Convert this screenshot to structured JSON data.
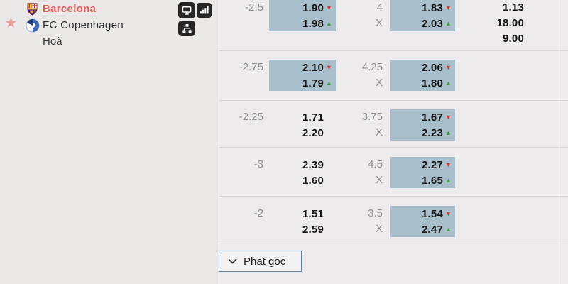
{
  "match_panel": {
    "home_team": "Barcelona",
    "away_team": "FC Copenhagen",
    "draw_label": "Hoà"
  },
  "odds_table": {
    "rows": [
      {
        "handicap": "-2.5",
        "home_cell": {
          "top_value": "1.90",
          "top_trend": "down",
          "bottom_value": "1.98",
          "bottom_trend": "up",
          "highlighted": true
        },
        "line": "4",
        "draw_mark": "X",
        "away_cell": {
          "top_value": "1.83",
          "top_trend": "down",
          "bottom_value": "2.03",
          "bottom_trend": "up",
          "highlighted": true
        },
        "match_odds": [
          "1.13",
          "18.00",
          "9.00"
        ]
      },
      {
        "handicap": "-2.75",
        "home_cell": {
          "top_value": "2.10",
          "top_trend": "down",
          "bottom_value": "1.79",
          "bottom_trend": "up",
          "highlighted": true
        },
        "line": "4.25",
        "draw_mark": "X",
        "away_cell": {
          "top_value": "2.06",
          "top_trend": "down",
          "bottom_value": "1.80",
          "bottom_trend": "up",
          "highlighted": true
        },
        "match_odds": []
      },
      {
        "handicap": "-2.25",
        "home_cell": {
          "top_value": "1.71",
          "top_trend": null,
          "bottom_value": "2.20",
          "bottom_trend": null,
          "highlighted": false
        },
        "line": "3.75",
        "draw_mark": "X",
        "away_cell": {
          "top_value": "1.67",
          "top_trend": "down",
          "bottom_value": "2.23",
          "bottom_trend": "up",
          "highlighted": true
        },
        "match_odds": []
      },
      {
        "handicap": "-3",
        "home_cell": {
          "top_value": "2.39",
          "top_trend": null,
          "bottom_value": "1.60",
          "bottom_trend": null,
          "highlighted": false
        },
        "line": "4.5",
        "draw_mark": "X",
        "away_cell": {
          "top_value": "2.27",
          "top_trend": "down",
          "bottom_value": "1.65",
          "bottom_trend": "up",
          "highlighted": true
        },
        "match_odds": []
      },
      {
        "handicap": "-2",
        "home_cell": {
          "top_value": "1.51",
          "top_trend": null,
          "bottom_value": "2.59",
          "bottom_trend": null,
          "highlighted": false
        },
        "line": "3.5",
        "draw_mark": "X",
        "away_cell": {
          "top_value": "1.54",
          "top_trend": "down",
          "bottom_value": "2.47",
          "bottom_trend": "up",
          "highlighted": true
        },
        "match_odds": []
      }
    ]
  },
  "footer": {
    "corners_button_label": "Phạt góc"
  },
  "colors": {
    "highlight_cell": "#a9bfcc",
    "trend_down": "#d5342c",
    "trend_up": "#3da03c",
    "home_team_text": "#e0605c"
  }
}
